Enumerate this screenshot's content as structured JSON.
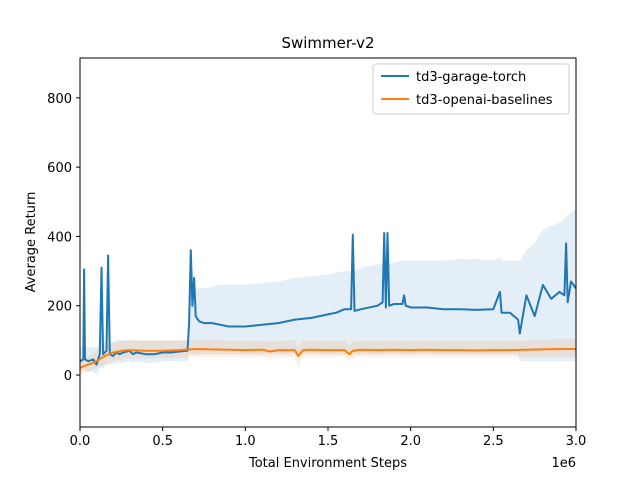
{
  "chart_data": {
    "type": "line",
    "title": "Swimmer-v2",
    "xlabel": "Total Environment Steps",
    "ylabel": "Average Return",
    "x_offset_label": "1e6",
    "xlim": [
      0,
      3.0
    ],
    "ylim": [
      -150,
      915
    ],
    "x_ticks": [
      0.0,
      0.5,
      1.0,
      1.5,
      2.0,
      2.5,
      3.0
    ],
    "x_tick_labels": [
      "0.0",
      "0.5",
      "1.0",
      "1.5",
      "2.0",
      "2.5",
      "3.0"
    ],
    "y_ticks": [
      0,
      200,
      400,
      600,
      800
    ],
    "y_tick_labels": [
      "0",
      "200",
      "400",
      "600",
      "800"
    ],
    "grid": false,
    "legend_position": "top-right",
    "series": [
      {
        "name": "td3-garage-torch",
        "color": "#1f77b4",
        "x": [
          0.0,
          0.02,
          0.025,
          0.03,
          0.05,
          0.08,
          0.1,
          0.12,
          0.13,
          0.14,
          0.16,
          0.17,
          0.18,
          0.2,
          0.22,
          0.24,
          0.26,
          0.3,
          0.32,
          0.34,
          0.4,
          0.45,
          0.5,
          0.55,
          0.6,
          0.65,
          0.66,
          0.67,
          0.68,
          0.69,
          0.7,
          0.72,
          0.75,
          0.8,
          0.85,
          0.9,
          1.0,
          1.1,
          1.2,
          1.3,
          1.4,
          1.5,
          1.55,
          1.6,
          1.64,
          1.65,
          1.66,
          1.7,
          1.8,
          1.83,
          1.84,
          1.85,
          1.86,
          1.87,
          1.9,
          1.95,
          1.96,
          1.97,
          2.0,
          2.1,
          2.2,
          2.3,
          2.4,
          2.5,
          2.54,
          2.55,
          2.6,
          2.65,
          2.66,
          2.7,
          2.75,
          2.8,
          2.85,
          2.9,
          2.93,
          2.94,
          2.95,
          2.97,
          3.0
        ],
        "y": [
          40,
          45,
          305,
          45,
          40,
          45,
          30,
          60,
          310,
          60,
          70,
          345,
          60,
          55,
          65,
          60,
          65,
          70,
          60,
          65,
          60,
          60,
          65,
          65,
          68,
          70,
          150,
          360,
          200,
          280,
          170,
          155,
          150,
          150,
          145,
          140,
          140,
          145,
          150,
          160,
          165,
          175,
          180,
          190,
          190,
          405,
          185,
          190,
          200,
          210,
          410,
          195,
          410,
          200,
          205,
          205,
          230,
          200,
          195,
          195,
          190,
          190,
          188,
          190,
          240,
          180,
          180,
          160,
          120,
          230,
          170,
          260,
          220,
          240,
          230,
          380,
          210,
          270,
          250
        ],
        "band_lower": [
          10,
          10,
          20,
          10,
          10,
          10,
          0,
          20,
          20,
          20,
          30,
          30,
          30,
          30,
          35,
          35,
          35,
          40,
          35,
          40,
          35,
          35,
          40,
          40,
          40,
          40,
          60,
          60,
          60,
          60,
          60,
          60,
          60,
          60,
          60,
          60,
          60,
          60,
          60,
          60,
          60,
          60,
          60,
          60,
          60,
          60,
          60,
          60,
          60,
          60,
          60,
          60,
          60,
          60,
          60,
          60,
          60,
          60,
          60,
          60,
          60,
          60,
          60,
          60,
          60,
          60,
          60,
          60,
          40,
          40,
          40,
          40,
          40,
          40,
          40,
          40,
          40,
          40,
          40
        ],
        "band_upper": [
          80,
          80,
          300,
          80,
          80,
          80,
          80,
          90,
          300,
          90,
          100,
          330,
          95,
          95,
          100,
          100,
          100,
          100,
          100,
          100,
          100,
          100,
          100,
          100,
          100,
          100,
          260,
          360,
          300,
          290,
          250,
          250,
          250,
          255,
          260,
          260,
          260,
          265,
          270,
          280,
          285,
          290,
          295,
          300,
          300,
          400,
          300,
          310,
          320,
          320,
          410,
          320,
          410,
          320,
          325,
          330,
          330,
          330,
          330,
          330,
          330,
          335,
          335,
          330,
          340,
          330,
          330,
          330,
          330,
          360,
          380,
          420,
          430,
          440,
          450,
          460,
          460,
          470,
          480
        ]
      },
      {
        "name": "td3-openai-baselines",
        "color": "#ff7f0e",
        "x": [
          0.0,
          0.02,
          0.05,
          0.08,
          0.1,
          0.15,
          0.2,
          0.25,
          0.3,
          0.4,
          0.5,
          0.6,
          0.7,
          0.8,
          0.9,
          1.0,
          1.1,
          1.15,
          1.2,
          1.3,
          1.32,
          1.35,
          1.4,
          1.5,
          1.6,
          1.63,
          1.65,
          1.7,
          1.8,
          1.9,
          2.0,
          2.1,
          2.2,
          2.3,
          2.4,
          2.5,
          2.6,
          2.7,
          2.8,
          2.9,
          3.0
        ],
        "y": [
          20,
          25,
          30,
          35,
          40,
          55,
          65,
          70,
          72,
          70,
          70,
          72,
          75,
          74,
          73,
          72,
          73,
          68,
          72,
          72,
          55,
          72,
          73,
          72,
          72,
          60,
          70,
          73,
          72,
          73,
          72,
          73,
          72,
          72,
          71,
          72,
          72,
          73,
          74,
          75,
          75
        ],
        "band_lower": [
          0,
          5,
          10,
          15,
          20,
          30,
          40,
          45,
          48,
          48,
          48,
          50,
          52,
          52,
          52,
          52,
          52,
          48,
          52,
          52,
          20,
          52,
          52,
          52,
          52,
          40,
          50,
          52,
          52,
          52,
          52,
          52,
          52,
          52,
          52,
          52,
          52,
          52,
          52,
          53,
          53
        ],
        "band_upper": [
          40,
          45,
          55,
          60,
          70,
          85,
          95,
          100,
          102,
          100,
          100,
          100,
          102,
          102,
          100,
          100,
          100,
          96,
          100,
          100,
          80,
          100,
          100,
          100,
          100,
          85,
          98,
          100,
          100,
          100,
          100,
          100,
          100,
          100,
          100,
          100,
          100,
          100,
          102,
          103,
          103
        ]
      }
    ]
  }
}
